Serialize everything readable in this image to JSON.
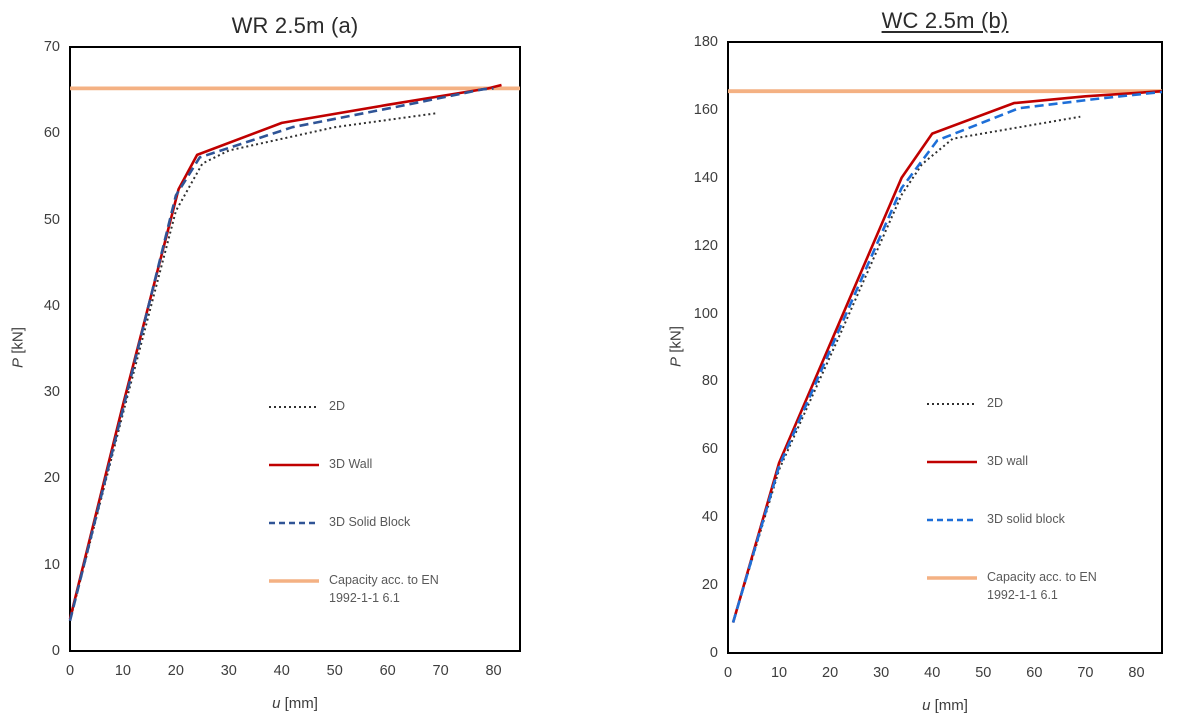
{
  "page": {
    "background": "#ffffff"
  },
  "chart_data": [
    {
      "type": "line",
      "title": "WR 2.5m (a)",
      "title_underlined": false,
      "x_label": {
        "variable": "u",
        "unit": "[mm]"
      },
      "y_label": {
        "variable": "P",
        "unit": "[kN]"
      },
      "xlim": [
        0,
        85
      ],
      "ylim": [
        0,
        70
      ],
      "x_ticks": [
        0,
        10,
        20,
        30,
        40,
        50,
        60,
        70,
        80
      ],
      "y_ticks": [
        0,
        10,
        20,
        30,
        40,
        50,
        60,
        70
      ],
      "grid": false,
      "legend_position": "inside-right-lower",
      "series": [
        {
          "name": "2D",
          "color": "#303030",
          "style": "dotted",
          "width": 2,
          "points": [
            [
              0,
              3.5
            ],
            [
              10,
              27.5
            ],
            [
              20,
              51
            ],
            [
              25,
              56.5
            ],
            [
              30,
              58
            ],
            [
              50,
              60.7
            ],
            [
              69,
              62.3
            ]
          ]
        },
        {
          "name": "3D Wall",
          "color": "#C00000",
          "style": "solid",
          "width": 2.6,
          "points": [
            [
              0,
              3.7
            ],
            [
              10,
              28.5
            ],
            [
              20.5,
              53.5
            ],
            [
              24,
              57.5
            ],
            [
              40,
              61.2
            ],
            [
              60,
              63.3
            ],
            [
              79,
              65.2
            ],
            [
              81.5,
              65.6
            ]
          ]
        },
        {
          "name": "3D Solid Block",
          "color": "#2F5496",
          "style": "dashed",
          "width": 2.6,
          "points": [
            [
              0,
              3.5
            ],
            [
              10,
              28
            ],
            [
              20,
              52.8
            ],
            [
              24.5,
              57.2
            ],
            [
              42,
              60.7
            ],
            [
              62,
              63.1
            ],
            [
              78,
              65.1
            ],
            [
              80,
              65.2
            ]
          ]
        },
        {
          "name": "Capacity acc. to EN 1992-1-1 6.1",
          "color": "#F4B183",
          "style": "solid",
          "width": 3.8,
          "points": [
            [
              0,
              65.2
            ],
            [
              85,
              65.2
            ]
          ]
        }
      ]
    },
    {
      "type": "line",
      "title": "WC 2.5m (b)",
      "title_underlined": true,
      "x_label": {
        "variable": "u",
        "unit": "[mm]"
      },
      "y_label": {
        "variable": "P",
        "unit": "[kN]"
      },
      "xlim": [
        0,
        85
      ],
      "ylim": [
        0,
        180
      ],
      "x_ticks": [
        0,
        10,
        20,
        30,
        40,
        50,
        60,
        70,
        80
      ],
      "y_ticks": [
        0,
        20,
        40,
        60,
        80,
        100,
        120,
        140,
        160,
        180
      ],
      "grid": false,
      "legend_position": "inside-right-lower",
      "series": [
        {
          "name": "2D",
          "color": "#303030",
          "style": "dotted",
          "width": 2,
          "points": [
            [
              1,
              9
            ],
            [
              10,
              54
            ],
            [
              22,
              94
            ],
            [
              34,
              135
            ],
            [
              38,
              144
            ],
            [
              44,
              151.5
            ],
            [
              69,
              158
            ]
          ]
        },
        {
          "name": "3D wall",
          "color": "#C00000",
          "style": "solid",
          "width": 2.6,
          "points": [
            [
              1,
              9
            ],
            [
              10,
              56
            ],
            [
              22,
              98
            ],
            [
              34,
              140
            ],
            [
              40,
              153
            ],
            [
              56,
              162
            ],
            [
              70,
              164
            ],
            [
              85,
              165.5
            ]
          ]
        },
        {
          "name": "3D solid block",
          "color": "#1E6FD8",
          "style": "dashed",
          "width": 2.6,
          "points": [
            [
              1,
              9
            ],
            [
              10,
              55
            ],
            [
              22,
              96
            ],
            [
              34,
              137
            ],
            [
              41,
              151
            ],
            [
              57,
              160.5
            ],
            [
              72,
              163.2
            ],
            [
              85,
              165.3
            ]
          ]
        },
        {
          "name": "Capacity acc. to EN 1992-1-1 6.1",
          "color": "#F4B183",
          "style": "solid",
          "width": 3.8,
          "points": [
            [
              0,
              165.5
            ],
            [
              85,
              165.5
            ]
          ]
        }
      ]
    }
  ]
}
